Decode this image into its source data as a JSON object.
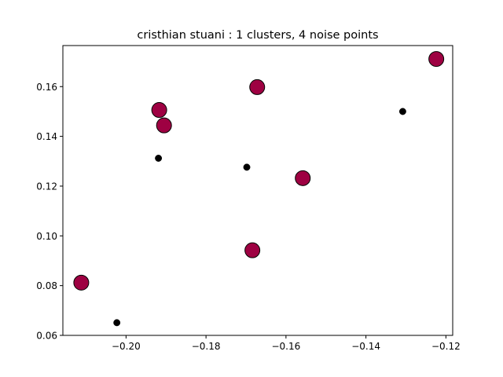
{
  "chart_data": {
    "type": "scatter",
    "title": "cristhian stuani : 1 clusters, 4 noise points",
    "xlabel": "",
    "ylabel": "",
    "xlim": [
      -0.2158,
      -0.1183
    ],
    "ylim": [
      0.06,
      0.1765
    ],
    "xticks": [
      -0.2,
      -0.18,
      -0.16,
      -0.14,
      -0.12
    ],
    "xtick_labels": [
      "−0.20",
      "−0.18",
      "−0.16",
      "−0.14",
      "−0.12"
    ],
    "yticks": [
      0.06,
      0.08,
      0.1,
      0.12,
      0.14,
      0.16
    ],
    "ytick_labels": [
      "0.06",
      "0.08",
      "0.10",
      "0.12",
      "0.14",
      "0.16"
    ],
    "grid": false,
    "legend": "none",
    "series": [
      {
        "marker": "large-circle",
        "color": "#9e0142",
        "edge_color": "#000000",
        "points": [
          {
            "x": -0.2112,
            "y": 0.0812
          },
          {
            "x": -0.1917,
            "y": 0.1506
          },
          {
            "x": -0.1905,
            "y": 0.1444
          },
          {
            "x": -0.1672,
            "y": 0.1598
          },
          {
            "x": -0.1684,
            "y": 0.0942
          },
          {
            "x": -0.1558,
            "y": 0.1232
          },
          {
            "x": -0.1224,
            "y": 0.1711
          }
        ]
      },
      {
        "marker": "small-circle",
        "color": "#000000",
        "edge_color": "#000000",
        "points": [
          {
            "x": -0.2023,
            "y": 0.0651
          },
          {
            "x": -0.1919,
            "y": 0.1312
          },
          {
            "x": -0.1698,
            "y": 0.1276
          },
          {
            "x": -0.1308,
            "y": 0.15
          }
        ]
      }
    ]
  }
}
